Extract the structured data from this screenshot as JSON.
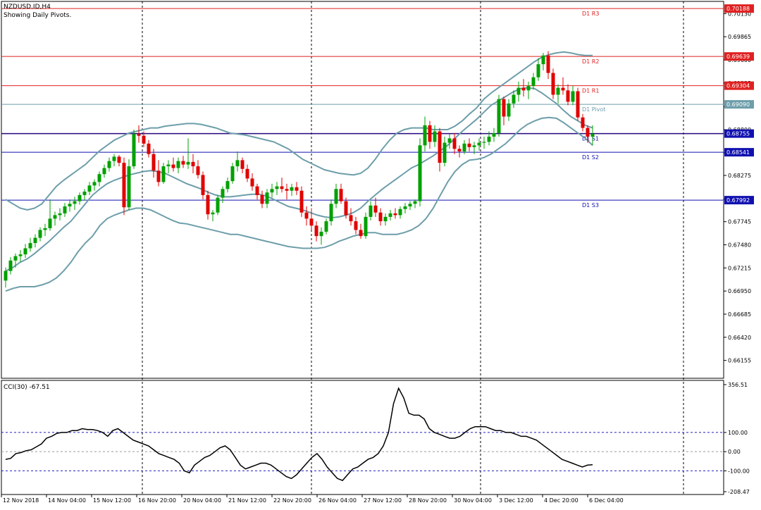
{
  "chart_data": [
    {
      "type": "candlestick",
      "symbol_line": "NZDUSD.ID,H4",
      "subtitle": "Showing Daily Pivots.",
      "ylim": [
        0.6595,
        0.7027
      ],
      "price_ticks": [
        "0.70130",
        "0.69865",
        "0.69600",
        "0.69335",
        "0.69065",
        "0.68800",
        "0.68535",
        "0.68275",
        "0.68005",
        "0.67745",
        "0.67480",
        "0.67215",
        "0.66950",
        "0.66685",
        "0.66420",
        "0.66155"
      ],
      "pivot_levels": [
        {
          "name": "D1 R3",
          "value": 0.70188,
          "label": "0.70188",
          "color": "#e02020"
        },
        {
          "name": "D1 R2",
          "value": 0.69639,
          "label": "0.69639",
          "color": "#e02020"
        },
        {
          "name": "D1 R1",
          "value": 0.69304,
          "label": "0.69304",
          "color": "#e02020"
        },
        {
          "name": "D1 Pivot",
          "value": 0.6909,
          "label": "0.69090",
          "color": "#6d9eaa"
        },
        {
          "name": "D1 S1",
          "value": 0.68755,
          "label": "0.68755",
          "color": "#1010b0"
        },
        {
          "name": "D1 S2",
          "value": 0.68541,
          "label": "0.68541",
          "color": "#1010b0"
        },
        {
          "name": "D1 S3",
          "value": 0.67992,
          "label": "0.67992",
          "color": "#1010b0"
        }
      ],
      "current_price": 0.68755,
      "x_labels": [
        "12 Nov 2018",
        "14 Nov 04:00",
        "15 Nov 12:00",
        "16 Nov 20:00",
        "20 Nov 04:00",
        "21 Nov 12:00",
        "22 Nov 20:00",
        "26 Nov 04:00",
        "27 Nov 12:00",
        "28 Nov 20:00",
        "30 Nov 04:00",
        "3 Dec 12:00",
        "4 Dec 20:00",
        "6 Dec 04:00"
      ],
      "bull_color": "#00a000",
      "bear_color": "#e00000",
      "band_color": "#6d9eaa",
      "candles": [
        [
          0.6707,
          0.6722,
          0.6699,
          0.6718
        ],
        [
          0.6718,
          0.6734,
          0.6714,
          0.673
        ],
        [
          0.673,
          0.6738,
          0.6722,
          0.6735
        ],
        [
          0.6735,
          0.6742,
          0.6728,
          0.6737
        ],
        [
          0.6737,
          0.6749,
          0.6733,
          0.6744
        ],
        [
          0.6744,
          0.6756,
          0.674,
          0.675
        ],
        [
          0.675,
          0.676,
          0.6745,
          0.6756
        ],
        [
          0.6756,
          0.6768,
          0.6752,
          0.6765
        ],
        [
          0.6765,
          0.6772,
          0.6758,
          0.6767
        ],
        [
          0.6767,
          0.68,
          0.6764,
          0.6778
        ],
        [
          0.6778,
          0.6786,
          0.677,
          0.6782
        ],
        [
          0.6782,
          0.679,
          0.6776,
          0.6784
        ],
        [
          0.6784,
          0.6796,
          0.678,
          0.6792
        ],
        [
          0.6792,
          0.68,
          0.6786,
          0.6795
        ],
        [
          0.6795,
          0.6803,
          0.6788,
          0.6798
        ],
        [
          0.6798,
          0.6808,
          0.6794,
          0.6805
        ],
        [
          0.6805,
          0.6812,
          0.6799,
          0.6809
        ],
        [
          0.6809,
          0.682,
          0.6805,
          0.6816
        ],
        [
          0.6816,
          0.6823,
          0.681,
          0.682
        ],
        [
          0.682,
          0.6832,
          0.6815,
          0.6829
        ],
        [
          0.6829,
          0.684,
          0.6825,
          0.6836
        ],
        [
          0.6836,
          0.6848,
          0.6832,
          0.6844
        ],
        [
          0.6844,
          0.6852,
          0.6838,
          0.6849
        ],
        [
          0.6849,
          0.6851,
          0.6838,
          0.6842
        ],
        [
          0.6842,
          0.6848,
          0.6782,
          0.6791
        ],
        [
          0.6791,
          0.6846,
          0.6788,
          0.6838
        ],
        [
          0.6838,
          0.688,
          0.6835,
          0.6875
        ],
        [
          0.6875,
          0.6885,
          0.6865,
          0.6873
        ],
        [
          0.6873,
          0.6878,
          0.686,
          0.6864
        ],
        [
          0.6864,
          0.6868,
          0.6848,
          0.6852
        ],
        [
          0.6852,
          0.6858,
          0.6825,
          0.6833
        ],
        [
          0.6833,
          0.6845,
          0.6815,
          0.682
        ],
        [
          0.682,
          0.6842,
          0.6818,
          0.6838
        ],
        [
          0.6838,
          0.6845,
          0.683,
          0.684
        ],
        [
          0.684,
          0.6848,
          0.6832,
          0.6836
        ],
        [
          0.6836,
          0.6848,
          0.683,
          0.6844
        ],
        [
          0.6844,
          0.685,
          0.6836,
          0.684
        ],
        [
          0.684,
          0.687,
          0.6835,
          0.6843
        ],
        [
          0.6843,
          0.6852,
          0.683,
          0.6838
        ],
        [
          0.6838,
          0.6845,
          0.6824,
          0.6828
        ],
        [
          0.6828,
          0.6832,
          0.68,
          0.6805
        ],
        [
          0.6805,
          0.681,
          0.6777,
          0.6783
        ],
        [
          0.6783,
          0.6788,
          0.6775,
          0.6785
        ],
        [
          0.6785,
          0.6805,
          0.6782,
          0.6802
        ],
        [
          0.6802,
          0.6815,
          0.6796,
          0.6812
        ],
        [
          0.6812,
          0.6825,
          0.6808,
          0.6821
        ],
        [
          0.6821,
          0.6842,
          0.6818,
          0.6838
        ],
        [
          0.6838,
          0.6855,
          0.6832,
          0.6845
        ],
        [
          0.6845,
          0.6848,
          0.683,
          0.6835
        ],
        [
          0.6835,
          0.684,
          0.682,
          0.6824
        ],
        [
          0.6824,
          0.683,
          0.681,
          0.6815
        ],
        [
          0.6815,
          0.6818,
          0.68,
          0.6805
        ],
        [
          0.6805,
          0.681,
          0.679,
          0.6795
        ],
        [
          0.6795,
          0.6812,
          0.679,
          0.6808
        ],
        [
          0.6808,
          0.6818,
          0.6802,
          0.6812
        ],
        [
          0.6812,
          0.682,
          0.6805,
          0.6815
        ],
        [
          0.6815,
          0.6825,
          0.6808,
          0.6812
        ],
        [
          0.6812,
          0.6818,
          0.68,
          0.681
        ],
        [
          0.681,
          0.6818,
          0.6804,
          0.6814
        ],
        [
          0.6814,
          0.682,
          0.6805,
          0.681
        ],
        [
          0.681,
          0.6815,
          0.678,
          0.6785
        ],
        [
          0.6785,
          0.6792,
          0.677,
          0.6778
        ],
        [
          0.6778,
          0.679,
          0.6765,
          0.677
        ],
        [
          0.677,
          0.6775,
          0.6752,
          0.6758
        ],
        [
          0.6758,
          0.6768,
          0.6748,
          0.6763
        ],
        [
          0.6763,
          0.6778,
          0.676,
          0.6775
        ],
        [
          0.6775,
          0.68,
          0.677,
          0.6795
        ],
        [
          0.6795,
          0.6818,
          0.679,
          0.6812
        ],
        [
          0.6812,
          0.6818,
          0.6795,
          0.6798
        ],
        [
          0.6798,
          0.6802,
          0.6778,
          0.6782
        ],
        [
          0.6782,
          0.679,
          0.677,
          0.6775
        ],
        [
          0.6775,
          0.678,
          0.676,
          0.6765
        ],
        [
          0.6765,
          0.6772,
          0.6755,
          0.6758
        ],
        [
          0.6758,
          0.6785,
          0.6755,
          0.678
        ],
        [
          0.678,
          0.6798,
          0.6776,
          0.6793
        ],
        [
          0.6793,
          0.6802,
          0.678,
          0.6785
        ],
        [
          0.6785,
          0.679,
          0.677,
          0.6775
        ],
        [
          0.6775,
          0.6784,
          0.677,
          0.678
        ],
        [
          0.678,
          0.6788,
          0.6776,
          0.6784
        ],
        [
          0.6784,
          0.679,
          0.6778,
          0.6782
        ],
        [
          0.6782,
          0.6792,
          0.6778,
          0.6789
        ],
        [
          0.6789,
          0.6796,
          0.6784,
          0.6792
        ],
        [
          0.6792,
          0.6798,
          0.6788,
          0.6795
        ],
        [
          0.6795,
          0.68,
          0.679,
          0.6798
        ],
        [
          0.6798,
          0.687,
          0.6792,
          0.6862
        ],
        [
          0.6862,
          0.6895,
          0.6855,
          0.6885
        ],
        [
          0.6885,
          0.689,
          0.6858,
          0.6866
        ],
        [
          0.6866,
          0.6885,
          0.686,
          0.6878
        ],
        [
          0.6878,
          0.6882,
          0.6832,
          0.6842
        ],
        [
          0.6842,
          0.6872,
          0.6838,
          0.6865
        ],
        [
          0.6865,
          0.6875,
          0.6858,
          0.687
        ],
        [
          0.687,
          0.6876,
          0.6852,
          0.6858
        ],
        [
          0.6858,
          0.6862,
          0.6848,
          0.6855
        ],
        [
          0.6855,
          0.6868,
          0.6852,
          0.6864
        ],
        [
          0.6864,
          0.687,
          0.6855,
          0.686
        ],
        [
          0.686,
          0.6866,
          0.6852,
          0.6862
        ],
        [
          0.6862,
          0.687,
          0.6856,
          0.6865
        ],
        [
          0.6865,
          0.6872,
          0.6858,
          0.6866
        ],
        [
          0.6866,
          0.6878,
          0.6862,
          0.6872
        ],
        [
          0.6872,
          0.6882,
          0.6866,
          0.6876
        ],
        [
          0.6876,
          0.692,
          0.6872,
          0.6915
        ],
        [
          0.6915,
          0.6918,
          0.6885,
          0.6895
        ],
        [
          0.6895,
          0.6915,
          0.689,
          0.691
        ],
        [
          0.691,
          0.6925,
          0.6905,
          0.692
        ],
        [
          0.692,
          0.6935,
          0.6912,
          0.6928
        ],
        [
          0.6928,
          0.6938,
          0.6918,
          0.6925
        ],
        [
          0.6925,
          0.6935,
          0.6915,
          0.693
        ],
        [
          0.693,
          0.6945,
          0.6926,
          0.694
        ],
        [
          0.694,
          0.6962,
          0.6936,
          0.6955
        ],
        [
          0.6955,
          0.6968,
          0.6948,
          0.6965
        ],
        [
          0.6965,
          0.697,
          0.6938,
          0.6945
        ],
        [
          0.6945,
          0.695,
          0.6915,
          0.692
        ],
        [
          0.692,
          0.6932,
          0.691,
          0.6928
        ],
        [
          0.6928,
          0.694,
          0.692,
          0.6925
        ],
        [
          0.6925,
          0.6932,
          0.6908,
          0.6912
        ],
        [
          0.6912,
          0.693,
          0.6908,
          0.6924
        ],
        [
          0.6924,
          0.6928,
          0.689,
          0.6894
        ],
        [
          0.6894,
          0.6898,
          0.6878,
          0.6882
        ],
        [
          0.6882,
          0.6885,
          0.6865,
          0.6872
        ],
        [
          0.6872,
          0.6885,
          0.6862,
          0.6875
        ]
      ],
      "bands_upper": [
        0.68,
        0.6795,
        0.679,
        0.6788,
        0.679,
        0.6795,
        0.6805,
        0.6815,
        0.6822,
        0.6828,
        0.6834,
        0.684,
        0.6848,
        0.6856,
        0.6862,
        0.6868,
        0.6872,
        0.6876,
        0.6878,
        0.688,
        0.6882,
        0.6882,
        0.6884,
        0.6885,
        0.6886,
        0.6887,
        0.6887,
        0.6886,
        0.6884,
        0.6882,
        0.6879,
        0.6876,
        0.6875,
        0.6874,
        0.6872,
        0.687,
        0.6868,
        0.6866,
        0.6862,
        0.6858,
        0.6852,
        0.6846,
        0.6842,
        0.6838,
        0.6834,
        0.6832,
        0.683,
        0.6829,
        0.6828,
        0.683,
        0.6836,
        0.6846,
        0.6858,
        0.6868,
        0.6876,
        0.688,
        0.6882,
        0.6882,
        0.6882,
        0.688,
        0.688,
        0.688,
        0.6884,
        0.689,
        0.6898,
        0.6905,
        0.6915,
        0.6922,
        0.6928,
        0.6934,
        0.694,
        0.6946,
        0.6952,
        0.6958,
        0.6963,
        0.6966,
        0.6968,
        0.6969,
        0.6968,
        0.6966,
        0.6965,
        0.6965
      ],
      "bands_middle": [
        0.6718,
        0.6722,
        0.6728,
        0.6732,
        0.6738,
        0.6745,
        0.6752,
        0.676,
        0.6768,
        0.6775,
        0.6785,
        0.6795,
        0.6805,
        0.6812,
        0.6818,
        0.6822,
        0.6825,
        0.6828,
        0.683,
        0.6832,
        0.6833,
        0.6832,
        0.683,
        0.6826,
        0.6822,
        0.6818,
        0.6815,
        0.6812,
        0.6808,
        0.6805,
        0.6803,
        0.6803,
        0.6804,
        0.6805,
        0.6806,
        0.6806,
        0.6804,
        0.68,
        0.6796,
        0.6792,
        0.679,
        0.6788,
        0.6785,
        0.6782,
        0.678,
        0.6779,
        0.678,
        0.6782,
        0.6785,
        0.679,
        0.6798,
        0.6805,
        0.6812,
        0.6818,
        0.6824,
        0.683,
        0.6836,
        0.684,
        0.6845,
        0.685,
        0.6856,
        0.6862,
        0.687,
        0.6878,
        0.6885,
        0.6892,
        0.69,
        0.6908,
        0.6913,
        0.6918,
        0.6923,
        0.6927,
        0.6928,
        0.6927,
        0.6922,
        0.6916,
        0.691,
        0.6902,
        0.6895,
        0.689,
        0.6885,
        0.6882
      ],
      "bands_lower": [
        0.6695,
        0.6698,
        0.67,
        0.67,
        0.67,
        0.6702,
        0.6705,
        0.671,
        0.6718,
        0.6728,
        0.674,
        0.675,
        0.6758,
        0.677,
        0.6778,
        0.6782,
        0.6785,
        0.6788,
        0.679,
        0.679,
        0.6788,
        0.6784,
        0.678,
        0.6776,
        0.6773,
        0.6772,
        0.677,
        0.6768,
        0.6766,
        0.6764,
        0.6762,
        0.676,
        0.676,
        0.6758,
        0.6756,
        0.6754,
        0.6752,
        0.675,
        0.6748,
        0.6746,
        0.6745,
        0.6744,
        0.6744,
        0.6744,
        0.6745,
        0.6748,
        0.6752,
        0.6755,
        0.6758,
        0.676,
        0.6762,
        0.6762,
        0.676,
        0.676,
        0.676,
        0.6762,
        0.6765,
        0.677,
        0.6778,
        0.679,
        0.6805,
        0.682,
        0.6832,
        0.684,
        0.6845,
        0.6846,
        0.6848,
        0.6852,
        0.6858,
        0.6864,
        0.6872,
        0.688,
        0.6886,
        0.689,
        0.6893,
        0.6894,
        0.6893,
        0.6888,
        0.6882,
        0.6876,
        0.687,
        0.6862
      ]
    },
    {
      "type": "line",
      "title": "CCI(30) -67.51",
      "ylim": [
        -208.47,
        356.51
      ],
      "y_ticks": [
        "356.51",
        "100.00",
        "0.00",
        "-100.00",
        "-208.47"
      ],
      "levels": [
        100,
        0,
        -100
      ],
      "series": [
        {
          "values": [
            -40,
            -35,
            -10,
            -5,
            5,
            10,
            25,
            40,
            70,
            80,
            95,
            100,
            100,
            110,
            110,
            120,
            115,
            115,
            110,
            100,
            80,
            110,
            120,
            100,
            80,
            60,
            50,
            40,
            30,
            10,
            -10,
            -20,
            -30,
            -40,
            -60,
            -100,
            -110,
            -70,
            -50,
            -30,
            -20,
            0,
            20,
            30,
            10,
            -30,
            -70,
            -90,
            -80,
            -70,
            -60,
            -60,
            -70,
            -90,
            -110,
            -130,
            -140,
            -120,
            -90,
            -60,
            -30,
            -10,
            -40,
            -80,
            -110,
            -140,
            -150,
            -120,
            -90,
            -80,
            -60,
            -40,
            -30,
            -10,
            30,
            100,
            250,
            330,
            280,
            200,
            190,
            190,
            170,
            120,
            100,
            90,
            80,
            70,
            70,
            80,
            100,
            120,
            130,
            130,
            130,
            120,
            110,
            110,
            100,
            100,
            90,
            80,
            80,
            70,
            60,
            40,
            20,
            0,
            -20,
            -40,
            -50,
            -60,
            -70,
            -80,
            -70,
            -68
          ]
        }
      ]
    }
  ]
}
